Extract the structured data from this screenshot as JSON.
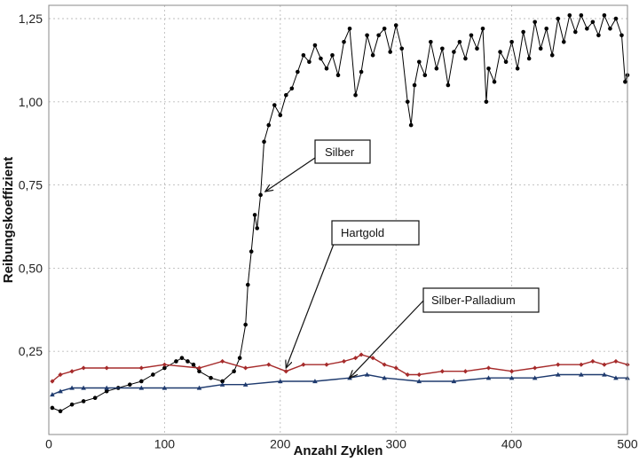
{
  "chart_data": {
    "type": "line",
    "title": "",
    "xlabel": "Anzahl Zyklen",
    "ylabel": "Reibungskoeffizient",
    "xlim": [
      0,
      500
    ],
    "ylim": [
      0,
      1.29
    ],
    "x_ticks": [
      0,
      100,
      200,
      300,
      400,
      500
    ],
    "x_tick_labels": [
      "0",
      "100",
      "200",
      "300",
      "400",
      "500"
    ],
    "y_ticks": [
      0.25,
      0.5,
      0.75,
      1.0,
      1.25
    ],
    "y_tick_labels": [
      "0,25",
      "0,50",
      "0,75",
      "1,00",
      "1,25"
    ],
    "grid": true,
    "series": [
      {
        "name": "Silber",
        "color": "#000000",
        "marker": "circle",
        "x": [
          3,
          10,
          20,
          30,
          40,
          50,
          60,
          70,
          80,
          90,
          100,
          110,
          115,
          120,
          125,
          130,
          140,
          150,
          160,
          165,
          170,
          172,
          175,
          178,
          180,
          183,
          186,
          190,
          195,
          200,
          205,
          210,
          215,
          220,
          225,
          230,
          235,
          240,
          245,
          250,
          255,
          260,
          265,
          270,
          275,
          280,
          285,
          290,
          295,
          300,
          305,
          310,
          313,
          316,
          320,
          325,
          330,
          335,
          340,
          345,
          350,
          355,
          360,
          365,
          370,
          375,
          378,
          380,
          385,
          390,
          395,
          400,
          405,
          410,
          415,
          420,
          425,
          430,
          435,
          440,
          445,
          450,
          455,
          460,
          465,
          470,
          475,
          480,
          485,
          490,
          495,
          498,
          500
        ],
        "y": [
          0.08,
          0.07,
          0.09,
          0.1,
          0.11,
          0.13,
          0.14,
          0.15,
          0.16,
          0.18,
          0.2,
          0.22,
          0.23,
          0.22,
          0.21,
          0.19,
          0.17,
          0.16,
          0.19,
          0.23,
          0.33,
          0.45,
          0.55,
          0.66,
          0.62,
          0.72,
          0.88,
          0.93,
          0.99,
          0.96,
          1.02,
          1.04,
          1.09,
          1.14,
          1.12,
          1.17,
          1.13,
          1.1,
          1.14,
          1.08,
          1.18,
          1.22,
          1.02,
          1.09,
          1.2,
          1.14,
          1.2,
          1.22,
          1.15,
          1.23,
          1.16,
          1.0,
          0.93,
          1.05,
          1.12,
          1.08,
          1.18,
          1.1,
          1.16,
          1.05,
          1.15,
          1.18,
          1.13,
          1.2,
          1.16,
          1.22,
          1.0,
          1.1,
          1.06,
          1.15,
          1.12,
          1.18,
          1.1,
          1.21,
          1.13,
          1.24,
          1.16,
          1.22,
          1.14,
          1.25,
          1.18,
          1.26,
          1.21,
          1.26,
          1.22,
          1.24,
          1.2,
          1.26,
          1.22,
          1.25,
          1.2,
          1.06,
          1.08
        ]
      },
      {
        "name": "Hartgold",
        "color": "#a62b2b",
        "marker": "diamond",
        "x": [
          3,
          10,
          20,
          30,
          50,
          80,
          100,
          130,
          150,
          170,
          190,
          205,
          220,
          240,
          255,
          265,
          270,
          280,
          290,
          300,
          310,
          320,
          340,
          360,
          380,
          400,
          420,
          440,
          460,
          470,
          480,
          490,
          500
        ],
        "y": [
          0.16,
          0.18,
          0.19,
          0.2,
          0.2,
          0.2,
          0.21,
          0.2,
          0.22,
          0.2,
          0.21,
          0.19,
          0.21,
          0.21,
          0.22,
          0.23,
          0.24,
          0.23,
          0.21,
          0.2,
          0.18,
          0.18,
          0.19,
          0.19,
          0.2,
          0.19,
          0.2,
          0.21,
          0.21,
          0.22,
          0.21,
          0.22,
          0.21
        ]
      },
      {
        "name": "Silber-Palladium",
        "color": "#1e3a6e",
        "marker": "triangle",
        "x": [
          3,
          10,
          20,
          30,
          50,
          80,
          100,
          130,
          150,
          170,
          200,
          230,
          260,
          275,
          290,
          320,
          350,
          380,
          400,
          420,
          440,
          460,
          480,
          490,
          500
        ],
        "y": [
          0.12,
          0.13,
          0.14,
          0.14,
          0.14,
          0.14,
          0.14,
          0.14,
          0.15,
          0.15,
          0.16,
          0.16,
          0.17,
          0.18,
          0.17,
          0.16,
          0.16,
          0.17,
          0.17,
          0.17,
          0.18,
          0.18,
          0.18,
          0.17,
          0.17
        ]
      }
    ],
    "annotations": [
      {
        "text": "Silber",
        "points_to": [
          187,
          0.73
        ]
      },
      {
        "text": "Hartgold",
        "points_to": [
          205,
          0.2
        ]
      },
      {
        "text": "Silber-Palladium",
        "points_to": [
          260,
          0.17
        ]
      }
    ]
  }
}
